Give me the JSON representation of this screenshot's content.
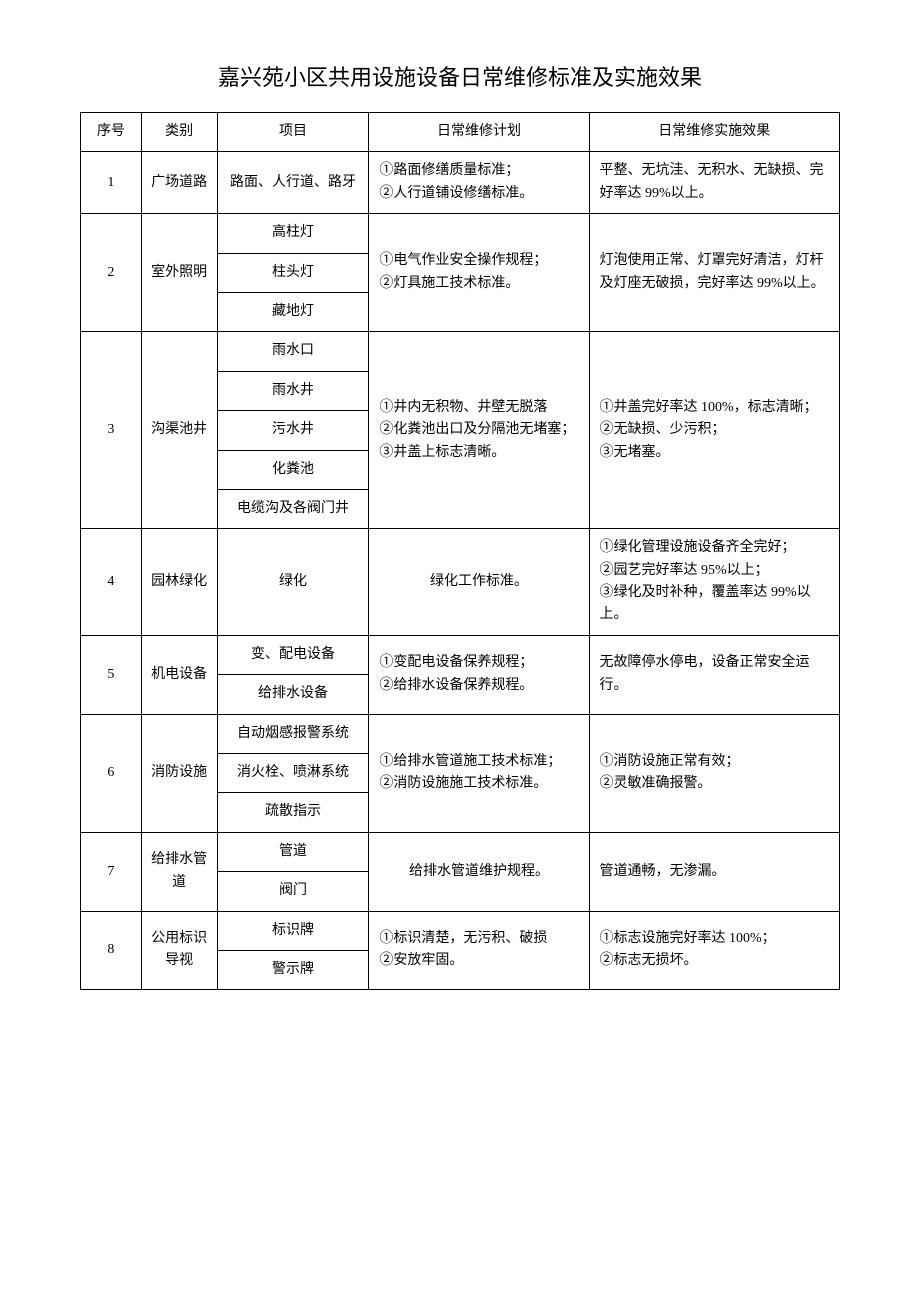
{
  "title": "嘉兴苑小区共用设施设备日常维修标准及实施效果",
  "headers": {
    "num": "序号",
    "category": "类别",
    "item": "项目",
    "plan": "日常维修计划",
    "result": "日常维修实施效果"
  },
  "rows": {
    "r1": {
      "num": "1",
      "category": "广场道路",
      "item": "路面、人行道、路牙",
      "plan": "①路面修缮质量标准；\n②人行道铺设修缮标准。",
      "result": "平整、无坑洼、无积水、无缺损、完好率达 99%以上。"
    },
    "r2": {
      "num": "2",
      "category": "室外照明",
      "items": {
        "a": "高柱灯",
        "b": "柱头灯",
        "c": "藏地灯"
      },
      "plan": "①电气作业安全操作规程；\n②灯具施工技术标准。",
      "result": "灯泡使用正常、灯罩完好清洁，灯杆及灯座无破损，完好率达 99%以上。"
    },
    "r3": {
      "num": "3",
      "category": "沟渠池井",
      "items": {
        "a": "雨水口",
        "b": "雨水井",
        "c": "污水井",
        "d": "化粪池",
        "e": "电缆沟及各阀门井"
      },
      "plan": "①井内无积物、井壁无脱落\n②化粪池出口及分隔池无堵塞；\n③井盖上标志清晰。",
      "result": "①井盖完好率达 100%，标志清晰；\n②无缺损、少污积；\n③无堵塞。"
    },
    "r4": {
      "num": "4",
      "category": "园林绿化",
      "item": "绿化",
      "plan": "绿化工作标准。",
      "result": "①绿化管理设施设备齐全完好；\n②园艺完好率达 95%以上；\n③绿化及时补种，覆盖率达 99%以上。"
    },
    "r5": {
      "num": "5",
      "category": "机电设备",
      "items": {
        "a": "变、配电设备",
        "b": "给排水设备"
      },
      "plan": "①变配电设备保养规程；\n②给排水设备保养规程。",
      "result": "无故障停水停电，设备正常安全运行。"
    },
    "r6": {
      "num": "6",
      "category": "消防设施",
      "items": {
        "a": "自动烟感报警系统",
        "b": "消火栓、喷淋系统",
        "c": "疏散指示"
      },
      "plan": "①给排水管道施工技术标准；\n②消防设施施工技术标准。",
      "result": "①消防设施正常有效；\n②灵敏准确报警。"
    },
    "r7": {
      "num": "7",
      "category": "给排水管道",
      "items": {
        "a": "管道",
        "b": "阀门"
      },
      "plan": "给排水管道维护规程。",
      "result": "管道通畅，无渗漏。"
    },
    "r8": {
      "num": "8",
      "category": "公用标识导视",
      "items": {
        "a": "标识牌",
        "b": "警示牌"
      },
      "plan": "①标识清楚，无污积、破损\n②安放牢固。",
      "result": "①标志设施完好率达 100%；\n②标志无损坏。"
    }
  }
}
